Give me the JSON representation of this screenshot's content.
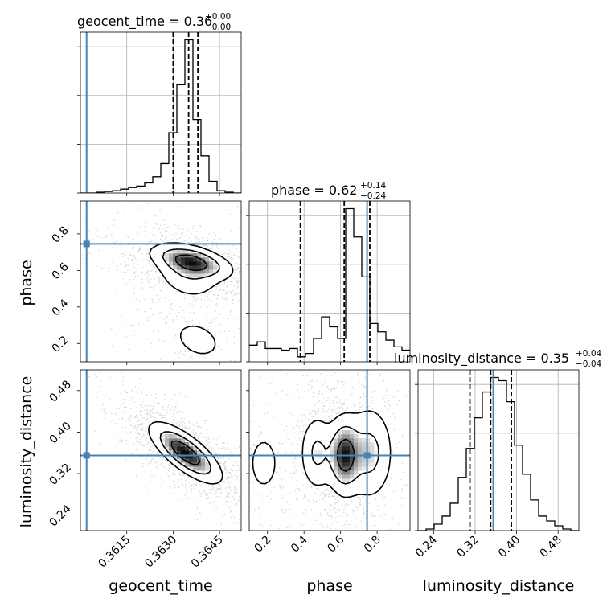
{
  "colors": {
    "truth": "#4682b4",
    "line": "#000000",
    "grid": "#b0b0b0",
    "scatter": "#9a9a9a"
  },
  "titles": {
    "geocent_time": {
      "label": "geocent_time = 0.36",
      "sup": "+0.00",
      "sub": "−0.00"
    },
    "phase": {
      "label": "phase = 0.62",
      "sup": "+0.14",
      "sub": "−0.24"
    },
    "luminosity_distance": {
      "label": "luminosity_distance = 0.35",
      "sup": "+0.04",
      "sub": "−0.04"
    }
  },
  "axis_labels": {
    "geocent_time": "geocent_time",
    "phase": "phase",
    "luminosity_distance": "luminosity_distance"
  },
  "ticklabels": {
    "geocent_time": [
      "0.3615",
      "0.3630",
      "0.3645"
    ],
    "phase": [
      "0.2",
      "0.4",
      "0.6",
      "0.8"
    ],
    "luminosity_distance": [
      "0.24",
      "0.32",
      "0.40",
      "0.48"
    ]
  },
  "chart_data": {
    "type": "corner",
    "parameters": [
      "geocent_time",
      "phase",
      "luminosity_distance"
    ],
    "truths": {
      "geocent_time": 0.3602,
      "phase": 0.745,
      "luminosity_distance": 0.355
    },
    "ranges": {
      "geocent_time": [
        0.36,
        0.3652
      ],
      "phase": [
        0.1,
        0.98
      ],
      "luminosity_distance": [
        0.21,
        0.52
      ]
    },
    "ticks": {
      "geocent_time": [
        0.3615,
        0.363,
        0.3645
      ],
      "phase": [
        0.2,
        0.4,
        0.6,
        0.8
      ],
      "luminosity_distance": [
        0.24,
        0.32,
        0.4,
        0.48
      ]
    },
    "quantiles": {
      "geocent_time": [
        0.363,
        0.3635,
        0.3638
      ],
      "phase": [
        0.38,
        0.62,
        0.76
      ],
      "luminosity_distance": [
        0.31,
        0.35,
        0.39
      ]
    },
    "histograms": {
      "geocent_time": {
        "edges": [
          0.36,
          0.36026,
          0.36052,
          0.36078,
          0.36104,
          0.3613,
          0.36156,
          0.36182,
          0.36208,
          0.36234,
          0.3626,
          0.36286,
          0.36312,
          0.36338,
          0.36364,
          0.3639,
          0.36416,
          0.36442,
          0.36468,
          0.36494,
          0.3652
        ],
        "counts": [
          0,
          0,
          1,
          2,
          3,
          5,
          7,
          9,
          13,
          21,
          38,
          78,
          140,
          198,
          95,
          48,
          15,
          3,
          1,
          0
        ]
      },
      "phase": {
        "edges": [
          0.1,
          0.144,
          0.188,
          0.232,
          0.276,
          0.32,
          0.364,
          0.408,
          0.452,
          0.496,
          0.54,
          0.584,
          0.628,
          0.672,
          0.716,
          0.76,
          0.804,
          0.848,
          0.892,
          0.936,
          0.98
        ],
        "counts": [
          10,
          12,
          8,
          8,
          7,
          8,
          3,
          5,
          14,
          27,
          21,
          14,
          92,
          75,
          51,
          23,
          18,
          13,
          9,
          7
        ]
      },
      "luminosity_distance": {
        "edges": [
          0.21,
          0.2255,
          0.241,
          0.2565,
          0.272,
          0.2875,
          0.303,
          0.3185,
          0.334,
          0.3495,
          0.365,
          0.3805,
          0.396,
          0.4115,
          0.427,
          0.4425,
          0.458,
          0.4735,
          0.489,
          0.5045,
          0.52
        ],
        "counts": [
          0,
          1,
          4,
          9,
          17,
          33,
          51,
          70,
          86,
          95,
          93,
          80,
          53,
          35,
          19,
          9,
          6,
          3,
          1,
          0
        ]
      }
    },
    "densities": [
      {
        "x": "geocent_time",
        "y": "phase",
        "blobs": [
          {
            "cx": 0.3636,
            "cy": 0.65,
            "sx": 0.0007,
            "sy": 0.05,
            "rho": -0.5,
            "w": 1.0
          },
          {
            "cx": 0.3635,
            "cy": 0.58,
            "sx": 0.0006,
            "sy": 0.08,
            "rho": -0.2,
            "w": 0.45
          },
          {
            "cx": 0.3638,
            "cy": 0.22,
            "sx": 0.0006,
            "sy": 0.08,
            "rho": -0.3,
            "w": 0.28
          }
        ]
      },
      {
        "x": "geocent_time",
        "y": "luminosity_distance",
        "blobs": [
          {
            "cx": 0.3634,
            "cy": 0.36,
            "sx": 0.0006,
            "sy": 0.03,
            "rho": -0.75,
            "w": 1.0
          }
        ]
      },
      {
        "x": "phase",
        "y": "luminosity_distance",
        "blobs": [
          {
            "cx": 0.62,
            "cy": 0.355,
            "sx": 0.05,
            "sy": 0.04,
            "rho": 0.0,
            "w": 1.0
          },
          {
            "cx": 0.76,
            "cy": 0.36,
            "sx": 0.07,
            "sy": 0.05,
            "rho": 0.0,
            "w": 0.55
          },
          {
            "cx": 0.47,
            "cy": 0.36,
            "sx": 0.05,
            "sy": 0.04,
            "rho": 0.0,
            "w": 0.5
          },
          {
            "cx": 0.18,
            "cy": 0.34,
            "sx": 0.06,
            "sy": 0.04,
            "rho": 0.0,
            "w": 0.25
          }
        ]
      }
    ]
  }
}
